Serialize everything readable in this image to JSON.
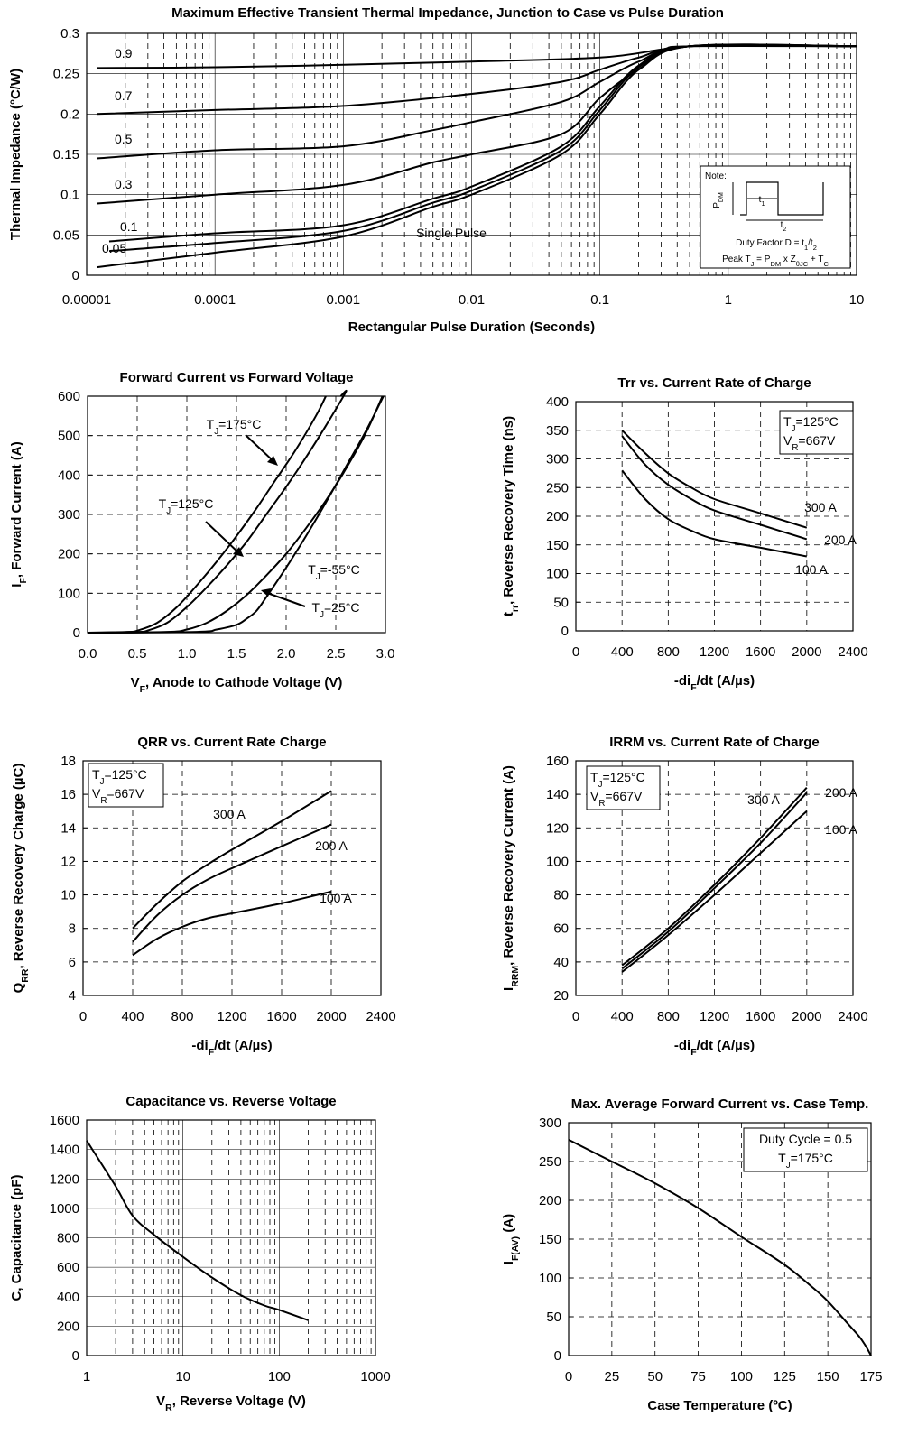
{
  "chart_data": [
    {
      "id": "zth",
      "type": "line",
      "title": "Maximum Effective Transient Thermal Impedance, Junction to Case vs Pulse Duration",
      "xlabel": "Rectangular Pulse Duration  (Seconds)",
      "ylabel": "Thermal Impedance (°C/W)",
      "xscale": "log",
      "xlim": [
        1e-05,
        10
      ],
      "ylim": [
        0,
        0.3
      ],
      "xticks": [
        "0.00001",
        "0.0001",
        "0.001",
        "0.01",
        "0.1",
        "1",
        "10"
      ],
      "yticks": [
        "0",
        "0.05",
        "0.1",
        "0.15",
        "0.2",
        "0.25",
        "0.3"
      ],
      "grid": "log-vertical, horizontal major",
      "series": [
        {
          "name": "0.9",
          "x": [
            1.2e-05,
            0.0001,
            0.001,
            0.01,
            0.1,
            0.3,
            0.5,
            10
          ],
          "y": [
            0.257,
            0.258,
            0.261,
            0.265,
            0.27,
            0.28,
            0.284,
            0.284
          ]
        },
        {
          "name": "0.7",
          "x": [
            1.2e-05,
            0.0001,
            0.001,
            0.01,
            0.05,
            0.1,
            0.2,
            0.5,
            10
          ],
          "y": [
            0.2,
            0.205,
            0.21,
            0.225,
            0.24,
            0.255,
            0.27,
            0.284,
            0.284
          ]
        },
        {
          "name": "0.5",
          "x": [
            1.2e-05,
            0.0001,
            0.001,
            0.005,
            0.01,
            0.05,
            0.1,
            0.2,
            0.5,
            10
          ],
          "y": [
            0.145,
            0.155,
            0.16,
            0.18,
            0.19,
            0.215,
            0.24,
            0.265,
            0.284,
            0.284
          ]
        },
        {
          "name": "0.3",
          "x": [
            1.2e-05,
            0.0001,
            0.001,
            0.005,
            0.01,
            0.05,
            0.1,
            0.2,
            0.5,
            10
          ],
          "y": [
            0.089,
            0.1,
            0.112,
            0.14,
            0.15,
            0.175,
            0.22,
            0.255,
            0.284,
            0.284
          ]
        },
        {
          "name": "0.1",
          "x": [
            1.5e-05,
            0.0001,
            0.001,
            0.005,
            0.01,
            0.05,
            0.1,
            0.2,
            0.5,
            10
          ],
          "y": [
            0.042,
            0.052,
            0.062,
            0.095,
            0.11,
            0.16,
            0.21,
            0.26,
            0.284,
            0.284
          ]
        },
        {
          "name": "0.05",
          "x": [
            1.5e-05,
            0.0001,
            0.001,
            0.005,
            0.01,
            0.05,
            0.1,
            0.2,
            0.5,
            10
          ],
          "y": [
            0.03,
            0.04,
            0.055,
            0.09,
            0.105,
            0.155,
            0.205,
            0.258,
            0.284,
            0.284
          ]
        },
        {
          "name": "Single Pulse",
          "x": [
            1.2e-05,
            0.0001,
            0.001,
            0.005,
            0.01,
            0.05,
            0.1,
            0.2,
            0.5,
            10
          ],
          "y": [
            0.01,
            0.028,
            0.048,
            0.085,
            0.1,
            0.15,
            0.2,
            0.255,
            0.284,
            0.284
          ]
        }
      ],
      "note": {
        "title": "Note:",
        "pdm": "P",
        "pdm_sub": "DM",
        "t1": "t",
        "t1_sub": "1",
        "t2": "t",
        "t2_sub": "2",
        "duty": "Duty Factor  D = ",
        "duty_frac_num": "t",
        "duty_frac_num_sub": "1",
        "duty_frac_den": "/t",
        "duty_frac_den_sub": "2",
        "peak_a": "Peak T",
        "peak_a_sub": "J",
        "peak_b": " = P",
        "peak_b_sub": "DM",
        "peak_c": " x Z",
        "peak_c_sub": "θJC",
        "peak_d": " + T",
        "peak_d_sub": "C"
      }
    },
    {
      "id": "vf",
      "type": "line",
      "title": "Forward Current vs Forward Voltage",
      "xlabel_main": "V",
      "xlabel_sub": "F",
      "xlabel_rest": ", Anode to Cathode Voltage (V)",
      "ylabel_main": "I",
      "ylabel_sub": "F",
      "ylabel_rest": ", Forward Current (A)",
      "xlim": [
        0,
        3.0
      ],
      "ylim": [
        0,
        600
      ],
      "xticks": [
        "0.0",
        "0.5",
        "1.0",
        "1.5",
        "2.0",
        "2.5",
        "3.0"
      ],
      "yticks": [
        "0",
        "100",
        "200",
        "300",
        "400",
        "500",
        "600"
      ],
      "series": [
        {
          "name": "TJ=175°C",
          "x": [
            0.0,
            0.4,
            0.5,
            0.7,
            0.9,
            1.1,
            1.3,
            1.5,
            1.7,
            1.9,
            2.1,
            2.3,
            2.4
          ],
          "y": [
            0,
            2,
            5,
            25,
            65,
            120,
            180,
            245,
            315,
            390,
            465,
            550,
            600
          ]
        },
        {
          "name": "TJ=125°C",
          "x": [
            0.0,
            0.5,
            0.6,
            0.8,
            1.0,
            1.2,
            1.4,
            1.6,
            1.8,
            2.0,
            2.2,
            2.4,
            2.6,
            2.55
          ],
          "y": [
            0,
            2,
            5,
            25,
            65,
            115,
            170,
            230,
            300,
            370,
            445,
            525,
            610,
            600
          ]
        },
        {
          "name": "TJ=25°C",
          "x": [
            0.0,
            0.8,
            1.0,
            1.2,
            1.4,
            1.6,
            1.8,
            2.0,
            2.2,
            2.4,
            2.6,
            2.8,
            2.97
          ],
          "y": [
            0,
            2,
            8,
            25,
            55,
            95,
            145,
            200,
            265,
            335,
            415,
            505,
            600
          ]
        },
        {
          "name": "TJ=-55°C",
          "x": [
            0.0,
            1.1,
            1.3,
            1.5,
            1.6,
            1.7,
            1.8,
            2.0,
            2.2,
            2.4,
            2.6,
            2.8,
            2.98
          ],
          "y": [
            0,
            2,
            8,
            20,
            35,
            55,
            90,
            165,
            245,
            330,
            420,
            510,
            600
          ]
        }
      ],
      "labels": [
        {
          "main": "T",
          "sub": "J",
          "rest": "=175°C"
        },
        {
          "main": "T",
          "sub": "J",
          "rest": "=125°C"
        },
        {
          "main": "T",
          "sub": "J",
          "rest": "=-55°C"
        },
        {
          "main": "T",
          "sub": "J",
          "rest": "=25°C"
        }
      ]
    },
    {
      "id": "trr",
      "type": "line",
      "title": "Trr vs. Current Rate of Charge",
      "xlabel_main": "-di",
      "xlabel_sub": "F",
      "xlabel_rest": "/dt (A/µs)",
      "ylabel_main": "t",
      "ylabel_sub": "rr",
      "ylabel_rest": ", Reverse Recovery Time (ns)",
      "xlim": [
        0,
        2400
      ],
      "ylim": [
        0,
        400
      ],
      "xticks": [
        "0",
        "400",
        "800",
        "1200",
        "1600",
        "2000",
        "2400"
      ],
      "yticks": [
        "0",
        "50",
        "100",
        "150",
        "200",
        "250",
        "300",
        "350",
        "400"
      ],
      "legend": [
        {
          "main": "T",
          "sub": "J",
          "rest": "=125°C"
        },
        {
          "main": "V",
          "sub": "R",
          "rest": "=667V"
        }
      ],
      "series": [
        {
          "name": "300 A",
          "x": [
            400,
            600,
            800,
            1000,
            1200,
            1600,
            2000
          ],
          "y": [
            350,
            310,
            275,
            250,
            230,
            205,
            180
          ]
        },
        {
          "name": "200 A",
          "x": [
            400,
            600,
            800,
            1000,
            1200,
            1600,
            2000
          ],
          "y": [
            340,
            290,
            255,
            230,
            210,
            185,
            160
          ]
        },
        {
          "name": "100 A",
          "x": [
            400,
            600,
            800,
            1000,
            1200,
            1600,
            2000
          ],
          "y": [
            280,
            230,
            195,
            175,
            160,
            145,
            130
          ]
        }
      ]
    },
    {
      "id": "qrr",
      "type": "line",
      "title": "QRR vs. Current Rate Charge",
      "xlabel_main": "-di",
      "xlabel_sub": "F",
      "xlabel_rest": "/dt (A/µs)",
      "ylabel_main": "Q",
      "ylabel_sub": "RR",
      "ylabel_rest": ", Reverse Recovery Charge (µC)",
      "xlim": [
        0,
        2400
      ],
      "ylim": [
        4,
        18
      ],
      "xticks": [
        "0",
        "400",
        "800",
        "1200",
        "1600",
        "2000",
        "2400"
      ],
      "yticks": [
        "4",
        "6",
        "8",
        "10",
        "12",
        "14",
        "16",
        "18"
      ],
      "legend": [
        {
          "main": "T",
          "sub": "J",
          "rest": "=125°C"
        },
        {
          "main": "V",
          "sub": "R",
          "rest": "=667V"
        }
      ],
      "series": [
        {
          "name": "300 A",
          "x": [
            400,
            600,
            800,
            1000,
            1200,
            1600,
            2000
          ],
          "y": [
            8.0,
            9.5,
            10.8,
            11.8,
            12.7,
            14.4,
            16.2
          ]
        },
        {
          "name": "200 A",
          "x": [
            400,
            600,
            800,
            1000,
            1200,
            1600,
            2000
          ],
          "y": [
            7.2,
            8.8,
            10.0,
            10.9,
            11.6,
            12.9,
            14.2
          ]
        },
        {
          "name": "100 A",
          "x": [
            400,
            600,
            800,
            1000,
            1200,
            1600,
            2000
          ],
          "y": [
            6.4,
            7.4,
            8.1,
            8.6,
            8.9,
            9.5,
            10.2
          ]
        }
      ]
    },
    {
      "id": "irrm",
      "type": "line",
      "title": "IRRM vs. Current Rate of Charge",
      "xlabel_main": "-di",
      "xlabel_sub": "F",
      "xlabel_rest": "/dt (A/µs)",
      "ylabel_main": "I",
      "ylabel_sub": "RRM",
      "ylabel_rest": ", Reverse Recovery Current (A)",
      "xlim": [
        0,
        2400
      ],
      "ylim": [
        20,
        160
      ],
      "xticks": [
        "0",
        "400",
        "800",
        "1200",
        "1600",
        "2000",
        "2400"
      ],
      "yticks": [
        "20",
        "40",
        "60",
        "80",
        "100",
        "120",
        "140",
        "160"
      ],
      "legend": [
        {
          "main": "T",
          "sub": "J",
          "rest": "=125°C"
        },
        {
          "main": "V",
          "sub": "R",
          "rest": "=667V"
        }
      ],
      "series": [
        {
          "name": "300 A",
          "x": [
            400,
            800,
            1200,
            1600,
            2000
          ],
          "y": [
            38,
            60,
            86,
            114,
            144
          ]
        },
        {
          "name": "200 A",
          "x": [
            400,
            800,
            1200,
            1600,
            2000
          ],
          "y": [
            36,
            58,
            84,
            111,
            141
          ]
        },
        {
          "name": "100 A",
          "x": [
            400,
            800,
            1200,
            1600,
            2000
          ],
          "y": [
            34,
            56,
            80,
            105,
            130
          ]
        }
      ]
    },
    {
      "id": "cap",
      "type": "line",
      "title": "Capacitance vs. Reverse Voltage",
      "xlabel_main": "V",
      "xlabel_sub": "R",
      "xlabel_rest": ", Reverse Voltage (V)",
      "ylabel": "C, Capacitance (pF)",
      "xscale": "log",
      "xlim": [
        1,
        1000
      ],
      "ylim": [
        0,
        1600
      ],
      "xticks": [
        "1",
        "10",
        "100",
        "1000"
      ],
      "yticks": [
        "0",
        "200",
        "400",
        "600",
        "800",
        "1000",
        "1200",
        "1400",
        "1600"
      ],
      "series": [
        {
          "name": "",
          "x": [
            1,
            2,
            3,
            5,
            10,
            20,
            40,
            70,
            100,
            200
          ],
          "y": [
            1460,
            1150,
            950,
            820,
            670,
            530,
            410,
            340,
            310,
            240
          ]
        }
      ]
    },
    {
      "id": "ifav",
      "type": "line",
      "title": "Max. Average Forward Current vs. Case Temp.",
      "xlabel": "Case Temperature (ºC)",
      "ylabel_main": "I",
      "ylabel_sub": "F(AV)",
      "ylabel_rest": " (A)",
      "xlim": [
        0,
        175
      ],
      "ylim": [
        0,
        300
      ],
      "xticks": [
        "0",
        "25",
        "50",
        "75",
        "100",
        "125",
        "150",
        "175"
      ],
      "yticks": [
        "0",
        "50",
        "100",
        "150",
        "200",
        "250",
        "300"
      ],
      "legend": [
        {
          "main": "Duty Cycle = 0.5",
          "sub": "",
          "rest": ""
        },
        {
          "main": "T",
          "sub": "J",
          "rest": "=175°C"
        }
      ],
      "series": [
        {
          "name": "",
          "x": [
            0,
            25,
            50,
            75,
            100,
            125,
            140,
            150,
            160,
            168,
            172,
            175
          ],
          "y": [
            278,
            250,
            222,
            190,
            153,
            117,
            90,
            70,
            45,
            25,
            12,
            0
          ]
        }
      ]
    }
  ]
}
